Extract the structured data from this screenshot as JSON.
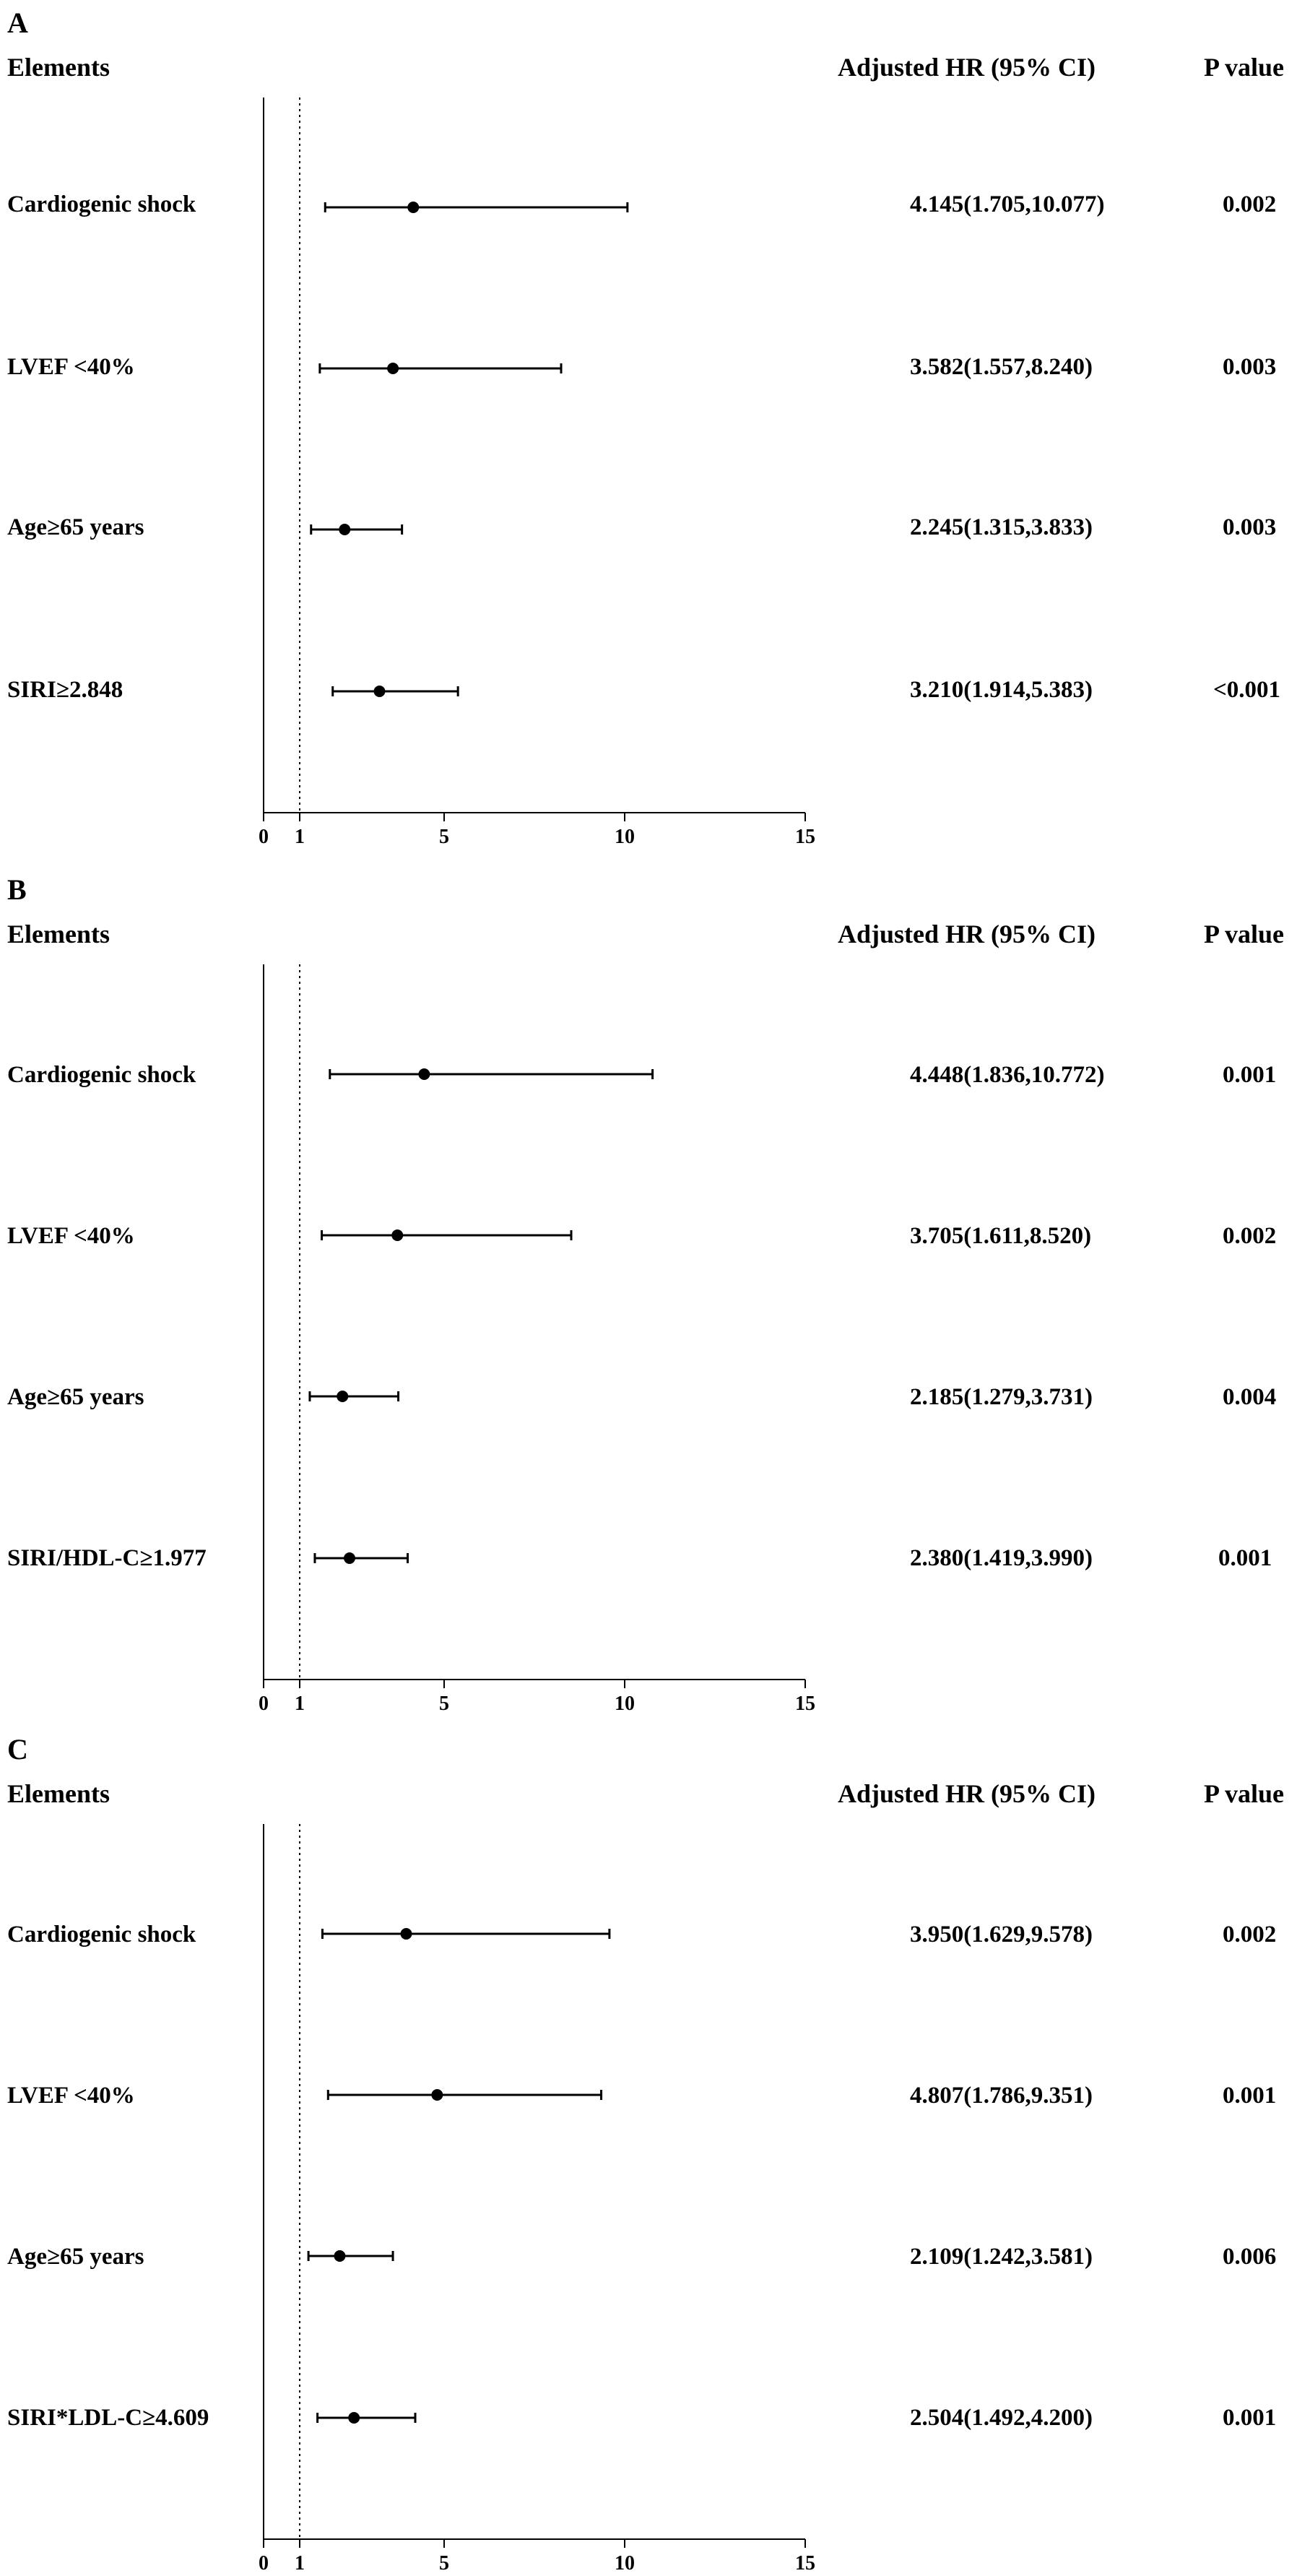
{
  "chart_data": [
    {
      "type": "forest",
      "panel_label": "A",
      "header": {
        "elements": "Elements",
        "hr": "Adjusted HR (95% CI)",
        "p": "P value"
      },
      "xlim": [
        0,
        15
      ],
      "ref_line": 1,
      "ticks": [
        0,
        1,
        5,
        10,
        15
      ],
      "tick_labels": [
        "0",
        "1",
        "5",
        "10",
        "15"
      ],
      "rows": [
        {
          "label": "Cardiogenic shock",
          "hr": 4.145,
          "lo": 1.705,
          "hi": 10.077,
          "hr_text": "4.145(1.705,10.077)",
          "p": "0.002"
        },
        {
          "label": "LVEF <40%",
          "hr": 3.582,
          "lo": 1.557,
          "hi": 8.24,
          "hr_text": "3.582(1.557,8.240)",
          "p": "0.003"
        },
        {
          "label": "Age≥65 years",
          "hr": 2.245,
          "lo": 1.315,
          "hi": 3.833,
          "hr_text": "2.245(1.315,3.833)",
          "p": "0.003"
        },
        {
          "label": "SIRI≥2.848",
          "hr": 3.21,
          "lo": 1.914,
          "hi": 5.383,
          "hr_text": "3.210(1.914,5.383)",
          "p": "<0.001"
        }
      ]
    },
    {
      "type": "forest",
      "panel_label": "B",
      "header": {
        "elements": "Elements",
        "hr": "Adjusted HR (95% CI)",
        "p": "P value"
      },
      "xlim": [
        0,
        15
      ],
      "ref_line": 1,
      "ticks": [
        0,
        1,
        5,
        10,
        15
      ],
      "tick_labels": [
        "0",
        "1",
        "5",
        "10",
        "15"
      ],
      "rows": [
        {
          "label": "Cardiogenic shock",
          "hr": 4.448,
          "lo": 1.836,
          "hi": 10.772,
          "hr_text": "4.448(1.836,10.772)",
          "p": "0.001"
        },
        {
          "label": "LVEF <40%",
          "hr": 3.705,
          "lo": 1.611,
          "hi": 8.52,
          "hr_text": "3.705(1.611,8.520)",
          "p": "0.002"
        },
        {
          "label": "Age≥65 years",
          "hr": 2.185,
          "lo": 1.279,
          "hi": 3.731,
          "hr_text": "2.185(1.279,3.731)",
          "p": "0.004"
        },
        {
          "label": "SIRI/HDL-C≥1.977",
          "hr": 2.38,
          "lo": 1.419,
          "hi": 3.99,
          "hr_text": "2.380(1.419,3.990)",
          "p": "0.001"
        }
      ]
    },
    {
      "type": "forest",
      "panel_label": "C",
      "header": {
        "elements": "Elements",
        "hr": "Adjusted HR (95% CI)",
        "p": "P value"
      },
      "xlim": [
        0,
        15
      ],
      "ref_line": 1,
      "ticks": [
        0,
        1,
        5,
        10,
        15
      ],
      "tick_labels": [
        "0",
        "1",
        "5",
        "10",
        "15"
      ],
      "rows": [
        {
          "label": "Cardiogenic shock",
          "hr": 3.95,
          "lo": 1.629,
          "hi": 9.578,
          "hr_text": "3.950(1.629,9.578)",
          "p": "0.002"
        },
        {
          "label": "LVEF <40%",
          "hr": 4.807,
          "lo": 1.786,
          "hi": 9.351,
          "hr_text": "4.807(1.786,9.351)",
          "p": "0.001"
        },
        {
          "label": "Age≥65 years",
          "hr": 2.109,
          "lo": 1.242,
          "hi": 3.581,
          "hr_text": "2.109(1.242,3.581)",
          "p": "0.006"
        },
        {
          "label": "SIRI*LDL-C≥4.609",
          "hr": 2.504,
          "lo": 1.492,
          "hi": 4.2,
          "hr_text": "2.504(1.492,4.200)",
          "p": "0.001"
        }
      ]
    }
  ]
}
